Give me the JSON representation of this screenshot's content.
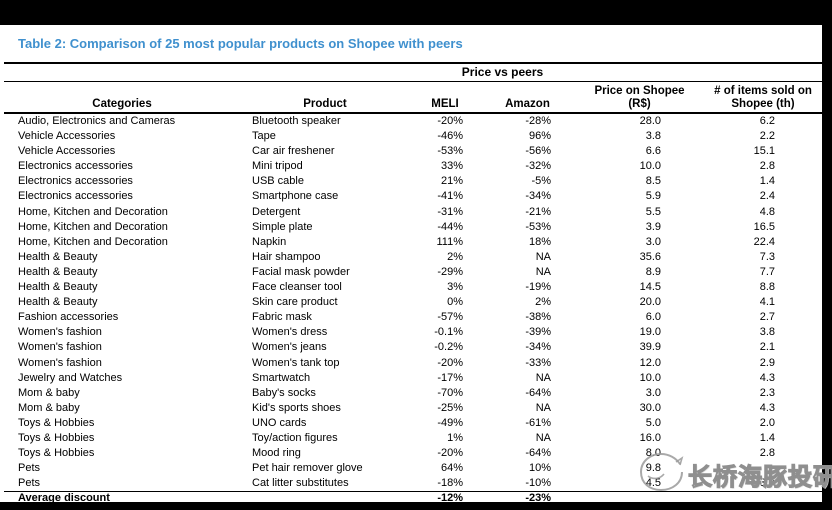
{
  "title": "Table 2: Comparison of 25 most popular products on Shopee with peers",
  "colors": {
    "title_blue": "#3F90CE",
    "frame_black": "#000000",
    "watermark_gray": "#8f8f8f"
  },
  "table": {
    "group_header": "Price vs peers",
    "columns": {
      "categories": "Categories",
      "product": "Product",
      "meli": "MELI",
      "amazon": "Amazon",
      "price": "Price on Shopee (R$)",
      "items": "# of items sold on Shopee (th)"
    },
    "rows": [
      {
        "category": "Audio, Electronics and Cameras",
        "product": "Bluetooth speaker",
        "meli": "-20%",
        "amazon": "-28%",
        "price": "28.0",
        "items": "6.2"
      },
      {
        "category": "Vehicle Accessories",
        "product": "Tape",
        "meli": "-46%",
        "amazon": "96%",
        "price": "3.8",
        "items": "2.2"
      },
      {
        "category": "Vehicle Accessories",
        "product": "Car air freshener",
        "meli": "-53%",
        "amazon": "-56%",
        "price": "6.6",
        "items": "15.1"
      },
      {
        "category": "Electronics accessories",
        "product": "Mini tripod",
        "meli": "33%",
        "amazon": "-32%",
        "price": "10.0",
        "items": "2.8"
      },
      {
        "category": "Electronics accessories",
        "product": "USB cable",
        "meli": "21%",
        "amazon": "-5%",
        "price": "8.5",
        "items": "1.4"
      },
      {
        "category": "Electronics accessories",
        "product": "Smartphone case",
        "meli": "-41%",
        "amazon": "-34%",
        "price": "5.9",
        "items": "2.4"
      },
      {
        "category": "Home, Kitchen and Decoration",
        "product": "Detergent",
        "meli": "-31%",
        "amazon": "-21%",
        "price": "5.5",
        "items": "4.8"
      },
      {
        "category": "Home, Kitchen and Decoration",
        "product": "Simple plate",
        "meli": "-44%",
        "amazon": "-53%",
        "price": "3.9",
        "items": "16.5"
      },
      {
        "category": "Home, Kitchen and Decoration",
        "product": "Napkin",
        "meli": "111%",
        "amazon": "18%",
        "price": "3.0",
        "items": "22.4"
      },
      {
        "category": "Health & Beauty",
        "product": "Hair shampoo",
        "meli": "2%",
        "amazon": "NA",
        "price": "35.6",
        "items": "7.3"
      },
      {
        "category": "Health & Beauty",
        "product": "Facial mask powder",
        "meli": "-29%",
        "amazon": "NA",
        "price": "8.9",
        "items": "7.7"
      },
      {
        "category": "Health & Beauty",
        "product": "Face cleanser tool",
        "meli": "3%",
        "amazon": "-19%",
        "price": "14.5",
        "items": "8.8"
      },
      {
        "category": "Health & Beauty",
        "product": "Skin care product",
        "meli": "0%",
        "amazon": "2%",
        "price": "20.0",
        "items": "4.1"
      },
      {
        "category": "Fashion accessories",
        "product": "Fabric mask",
        "meli": "-57%",
        "amazon": "-38%",
        "price": "6.0",
        "items": "2.7"
      },
      {
        "category": "Women's fashion",
        "product": "Women's dress",
        "meli": "-0.1%",
        "amazon": "-39%",
        "price": "19.0",
        "items": "3.8"
      },
      {
        "category": "Women's fashion",
        "product": "Women's jeans",
        "meli": "-0.2%",
        "amazon": "-34%",
        "price": "39.9",
        "items": "2.1"
      },
      {
        "category": "Women's fashion",
        "product": "Women's tank top",
        "meli": "-20%",
        "amazon": "-33%",
        "price": "12.0",
        "items": "2.9"
      },
      {
        "category": "Jewelry and Watches",
        "product": "Smartwatch",
        "meli": "-17%",
        "amazon": "NA",
        "price": "10.0",
        "items": "4.3"
      },
      {
        "category": "Mom & baby",
        "product": "Baby's socks",
        "meli": "-70%",
        "amazon": "-64%",
        "price": "3.0",
        "items": "2.3"
      },
      {
        "category": "Mom & baby",
        "product": "Kid's sports shoes",
        "meli": "-25%",
        "amazon": "NA",
        "price": "30.0",
        "items": "4.3"
      },
      {
        "category": "Toys & Hobbies",
        "product": "UNO cards",
        "meli": "-49%",
        "amazon": "-61%",
        "price": "5.0",
        "items": "2.0"
      },
      {
        "category": "Toys & Hobbies",
        "product": "Toy/action figures",
        "meli": "1%",
        "amazon": "NA",
        "price": "16.0",
        "items": "1.4"
      },
      {
        "category": "Toys & Hobbies",
        "product": "Mood ring",
        "meli": "-20%",
        "amazon": "-64%",
        "price": "8.0",
        "items": "2.8"
      },
      {
        "category": "Pets",
        "product": "Pet hair remover glove",
        "meli": "64%",
        "amazon": "10%",
        "price": "9.8",
        "items": ""
      },
      {
        "category": "Pets",
        "product": "Cat litter substitutes",
        "meli": "-18%",
        "amazon": "-10%",
        "price": "4.5",
        "items": "3.7"
      }
    ],
    "average": {
      "label": "Average discount",
      "meli": "-12%",
      "amazon": "-23%"
    }
  },
  "watermark": {
    "text": "长桥海豚投研",
    "logo": "dolphin-logo"
  }
}
